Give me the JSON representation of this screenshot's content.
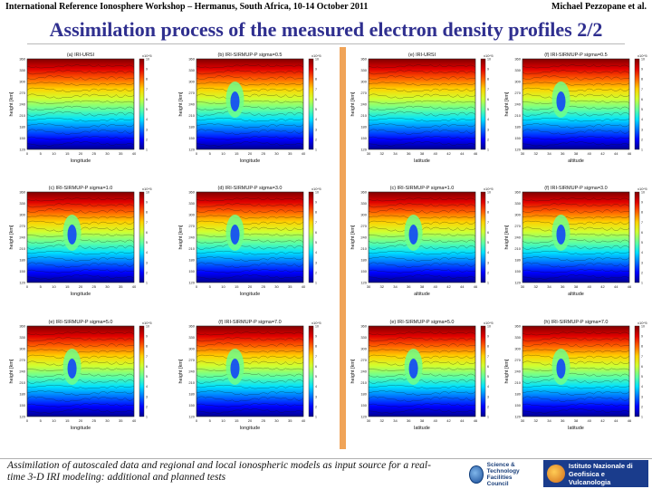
{
  "header": {
    "left": "International Reference Ionosphere Workshop – Hermanus, South Africa, 10-14 October 2011",
    "right": "Michael Pezzopane et al."
  },
  "title": "Assimilation process of the measured electron density profiles 2/2",
  "caption": "Assimilation of autoscaled data and regional and local ionospheric models as input source for a real-time 3-D IRI modeling: additional and planned tests",
  "logos": {
    "left_text_1": "Science & Technology",
    "left_text_2": "Facilities Council",
    "right_text_1": "Istituto Nazionale di",
    "right_text_2": "Geofisica e Vulcanologia"
  },
  "colormap": [
    "#00008f",
    "#0000ff",
    "#0070ff",
    "#00e0ff",
    "#60ff9f",
    "#d0ff30",
    "#ffd000",
    "#ff6000",
    "#e00000",
    "#800000"
  ],
  "chart_data": [
    {
      "type": "heatmap",
      "title": "(a) IRI-URSI",
      "xlabel": "longitude",
      "ylabel": "height [km]",
      "colorbar_exponent": "x10^5",
      "xticks": [
        "0",
        "5",
        "10",
        "15",
        "20",
        "25",
        "30",
        "35",
        "40"
      ],
      "yticks": [
        "120",
        "150",
        "180",
        "210",
        "240",
        "270",
        "300",
        "330",
        "360"
      ],
      "blob": false
    },
    {
      "type": "heatmap",
      "title": "(b) IRI-SIRMUP-P sigma=0.5",
      "xlabel": "longitude",
      "ylabel": "height [km]",
      "colorbar_exponent": "x10^5",
      "xticks": [
        "0",
        "5",
        "10",
        "15",
        "20",
        "25",
        "30",
        "35",
        "40"
      ],
      "yticks": [
        "120",
        "150",
        "180",
        "210",
        "240",
        "270",
        "300",
        "330",
        "360"
      ],
      "blob": true
    },
    {
      "type": "heatmap",
      "title": "(e) IRI-URSI",
      "xlabel": "latitude",
      "ylabel": "height [km]",
      "colorbar_exponent": "x10^5",
      "xticks": [
        "30",
        "32",
        "34",
        "36",
        "38",
        "40",
        "42",
        "44",
        "46"
      ],
      "yticks": [
        "120",
        "150",
        "180",
        "210",
        "240",
        "270",
        "300",
        "330",
        "360"
      ],
      "blob": false
    },
    {
      "type": "heatmap",
      "title": "(f) IRI-SIRMUP-P sigma=0.5",
      "xlabel": "altitude",
      "ylabel": "height [km]",
      "colorbar_exponent": "x10^5",
      "xticks": [
        "30",
        "32",
        "34",
        "36",
        "38",
        "40",
        "42",
        "44",
        "46"
      ],
      "yticks": [
        "120",
        "150",
        "180",
        "210",
        "240",
        "270",
        "300",
        "330",
        "360"
      ],
      "blob": true
    },
    {
      "type": "heatmap",
      "title": "(c) IRI-SIRMUP-P sigma=1.0",
      "xlabel": "longitude",
      "ylabel": "height [km]",
      "colorbar_exponent": "x10^5",
      "xticks": [
        "0",
        "5",
        "10",
        "15",
        "20",
        "25",
        "30",
        "35",
        "40"
      ],
      "yticks": [
        "120",
        "150",
        "180",
        "210",
        "240",
        "270",
        "300",
        "330",
        "360"
      ],
      "blob": true
    },
    {
      "type": "heatmap",
      "title": "(d) IRI-SIRMUP-P sigma=3.0",
      "xlabel": "longitude",
      "ylabel": "height [km]",
      "colorbar_exponent": "x10^5",
      "xticks": [
        "0",
        "5",
        "10",
        "15",
        "20",
        "25",
        "30",
        "35",
        "40"
      ],
      "yticks": [
        "120",
        "150",
        "180",
        "210",
        "240",
        "270",
        "300",
        "330",
        "360"
      ],
      "blob": true
    },
    {
      "type": "heatmap",
      "title": "(c) IRI-SIRMUP-P sigma=1.0",
      "xlabel": "altitude",
      "ylabel": "height [km]",
      "colorbar_exponent": "x10^5",
      "xticks": [
        "30",
        "32",
        "34",
        "36",
        "38",
        "40",
        "42",
        "44",
        "46"
      ],
      "yticks": [
        "120",
        "150",
        "180",
        "210",
        "240",
        "270",
        "300",
        "330",
        "360"
      ],
      "blob": true
    },
    {
      "type": "heatmap",
      "title": "(f) IRI-SIRMUP-P sigma=3.0",
      "xlabel": "altitude",
      "ylabel": "height [km]",
      "colorbar_exponent": "x10^5",
      "xticks": [
        "30",
        "32",
        "34",
        "36",
        "38",
        "40",
        "42",
        "44",
        "46"
      ],
      "yticks": [
        "120",
        "150",
        "180",
        "210",
        "240",
        "270",
        "300",
        "330",
        "360"
      ],
      "blob": true
    },
    {
      "type": "heatmap",
      "title": "(e) IRI-SIRMUP-P sigma=5.0",
      "xlabel": "longitude",
      "ylabel": "height [km]",
      "colorbar_exponent": "x10^5",
      "xticks": [
        "0",
        "5",
        "10",
        "15",
        "20",
        "25",
        "30",
        "35",
        "40"
      ],
      "yticks": [
        "120",
        "150",
        "180",
        "210",
        "240",
        "270",
        "300",
        "330",
        "360"
      ],
      "blob": true
    },
    {
      "type": "heatmap",
      "title": "(f) IRI-SIRMUP-P sigma=7.0",
      "xlabel": "longitude",
      "ylabel": "height [km]",
      "colorbar_exponent": "x10^5",
      "xticks": [
        "0",
        "5",
        "10",
        "15",
        "20",
        "25",
        "30",
        "35",
        "40"
      ],
      "yticks": [
        "120",
        "150",
        "180",
        "210",
        "240",
        "270",
        "300",
        "330",
        "360"
      ],
      "blob": true
    },
    {
      "type": "heatmap",
      "title": "(e) IRI-SIRMUP-P sigma=5.0",
      "xlabel": "latitude",
      "ylabel": "height [km]",
      "colorbar_exponent": "x10^5",
      "xticks": [
        "30",
        "32",
        "34",
        "36",
        "38",
        "40",
        "42",
        "44",
        "46"
      ],
      "yticks": [
        "120",
        "150",
        "180",
        "210",
        "240",
        "270",
        "300",
        "330",
        "360"
      ],
      "blob": true
    },
    {
      "type": "heatmap",
      "title": "(h) IRI-SIRMUP-P sigma=7.0",
      "xlabel": "latitude",
      "ylabel": "height [km]",
      "colorbar_exponent": "x10^5",
      "xticks": [
        "30",
        "32",
        "34",
        "36",
        "38",
        "40",
        "42",
        "44",
        "46"
      ],
      "yticks": [
        "120",
        "150",
        "180",
        "210",
        "240",
        "270",
        "300",
        "330",
        "360"
      ],
      "blob": true
    }
  ]
}
